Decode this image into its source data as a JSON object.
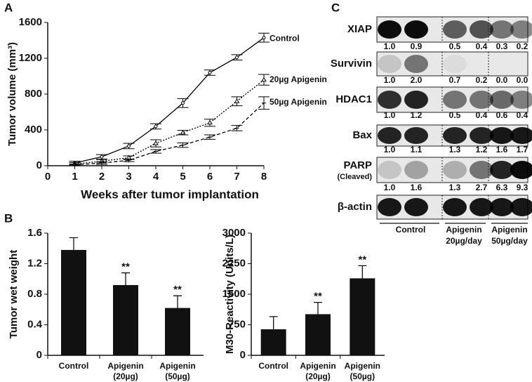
{
  "chart_data": [
    {
      "type": "line",
      "panel": "A",
      "ylabel": "Tumor volume (mm³)",
      "xlabel": "Weeks after tumor implantation",
      "x": [
        1,
        2,
        3,
        4,
        5,
        6,
        7,
        8
      ],
      "xlim": [
        0,
        8
      ],
      "xticks": [
        0,
        1,
        2,
        3,
        4,
        5,
        6,
        7,
        8
      ],
      "ylim": [
        0,
        1600
      ],
      "yticks": [
        0,
        400,
        800,
        1200,
        1600
      ],
      "series": [
        {
          "name": "Control",
          "color": "#000000",
          "line_style": "solid",
          "marker": "circle",
          "values": [
            30,
            100,
            220,
            440,
            700,
            1040,
            1210,
            1430
          ],
          "errors": [
            20,
            25,
            30,
            30,
            50,
            30,
            30,
            50
          ]
        },
        {
          "name": "20µg Apigenin",
          "color": "#000000",
          "line_style": "dotted",
          "marker": "triangle",
          "values": [
            20,
            50,
            90,
            250,
            370,
            480,
            720,
            960
          ],
          "errors": [
            15,
            20,
            20,
            40,
            25,
            40,
            50,
            60
          ]
        },
        {
          "name": "50µg Apigenin",
          "color": "#000000",
          "line_style": "dashed",
          "marker": "plus",
          "values": [
            10,
            30,
            60,
            160,
            230,
            320,
            420,
            700
          ],
          "errors": [
            10,
            15,
            15,
            20,
            25,
            25,
            30,
            70
          ]
        }
      ]
    },
    {
      "type": "bar",
      "panel": "B",
      "ylabel": "Tumor wet weight",
      "categories": [
        [
          "Control"
        ],
        [
          "Apigenin",
          "(20µg)"
        ],
        [
          "Apigenin",
          "(50µg)"
        ]
      ],
      "values": [
        1.38,
        0.92,
        0.62
      ],
      "errors": [
        0.16,
        0.16,
        0.16
      ],
      "significance": [
        null,
        "**",
        "**"
      ],
      "color": "#111111",
      "ylim": [
        0,
        1.6
      ],
      "yticks": [
        0,
        0.4,
        0.8,
        1.2,
        1.6
      ]
    },
    {
      "type": "bar",
      "ylabel": "M30-Reactivity (Units/L)",
      "categories": [
        [
          "Control"
        ],
        [
          "Apigenin",
          "(20µg)"
        ],
        [
          "Apigenin",
          "(50µg)"
        ]
      ],
      "values": [
        640,
        1010,
        1890
      ],
      "errors": [
        310,
        290,
        310
      ],
      "significance": [
        null,
        "**",
        "**"
      ],
      "color": "#111111",
      "ylim": [
        0,
        3000
      ],
      "yticks": [
        0,
        750,
        1500,
        2250,
        3000
      ]
    }
  ],
  "blot": {
    "panel": "C",
    "rows": [
      {
        "label": [
          "XIAP"
        ],
        "values": [
          "1.0",
          "0.9",
          "0.5",
          "0.4",
          "0.3",
          "0.2"
        ]
      },
      {
        "label": [
          "Survivin"
        ],
        "values": [
          "1.0",
          "2.0",
          "0.7",
          "0.2",
          "0.0",
          "0.0"
        ]
      },
      {
        "label": [
          "HDAC1"
        ],
        "values": [
          "1.0",
          "1.2",
          "0.5",
          "0.4",
          "0.6",
          "0.4"
        ]
      },
      {
        "label": [
          "Bax"
        ],
        "values": [
          "1.0",
          "1.1",
          "1.3",
          "1.2",
          "1.6",
          "1.7"
        ]
      },
      {
        "label": [
          "PARP",
          "(Cleaved)"
        ],
        "values": [
          "1.0",
          "1.6",
          "1.3",
          "2.7",
          "6.3",
          "9.3"
        ]
      },
      {
        "label": [
          "β-actin"
        ]
      }
    ],
    "groups": [
      [
        "Control"
      ],
      [
        "Apigenin",
        "20µg/day"
      ],
      [
        "Apigenin",
        "50µg/day"
      ]
    ]
  }
}
